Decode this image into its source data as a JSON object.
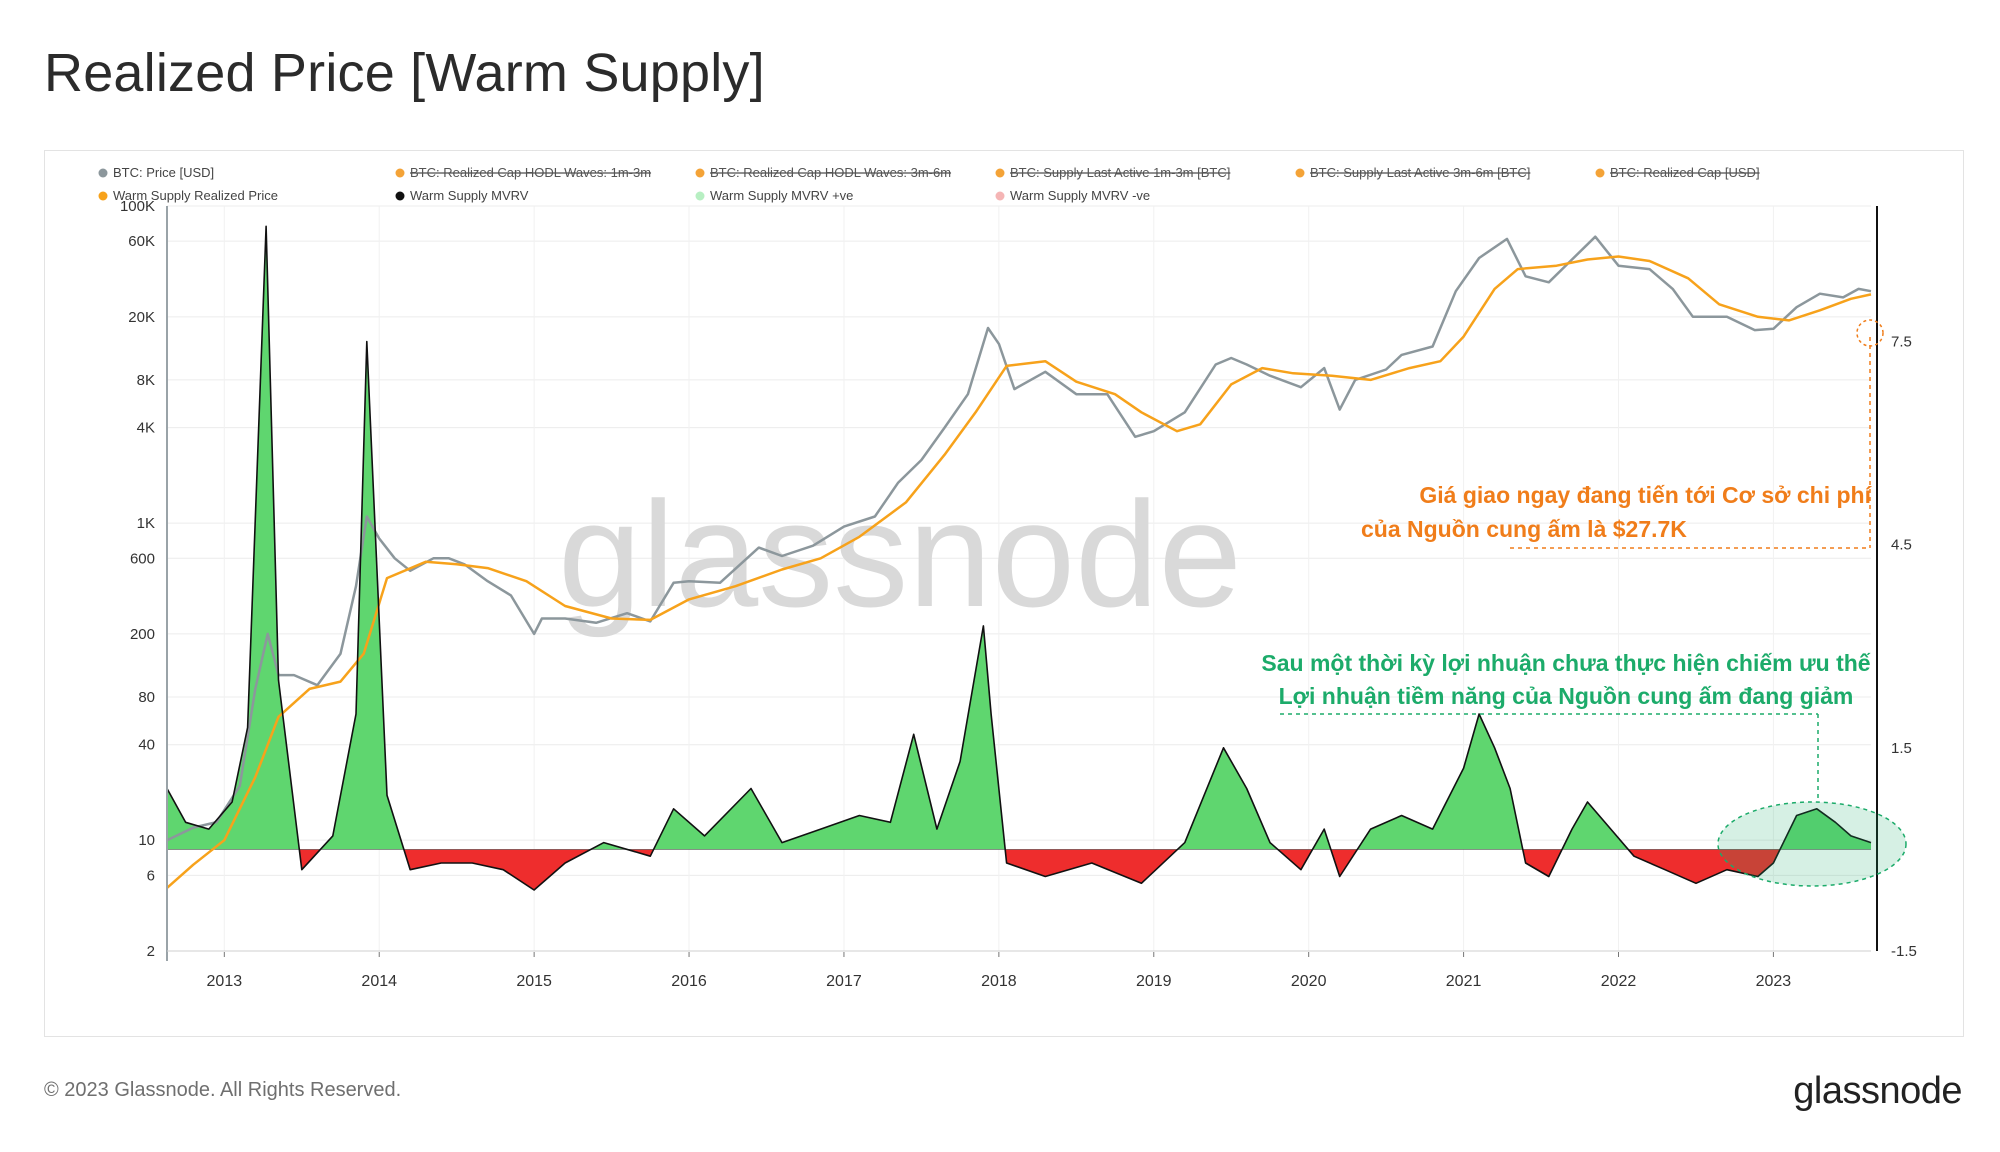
{
  "header": {
    "title": "Realized Price [Warm Supply]"
  },
  "footer": {
    "copyright": "© 2023 Glassnode. All Rights Reserved.",
    "logo": "glassnode"
  },
  "watermark": "glassnode",
  "legend": [
    {
      "label": "BTC: Price [USD]",
      "color": "#8c979c",
      "struck": false
    },
    {
      "label": "BTC: Realized Cap HODL Waves: 1m-3m",
      "color": "#f4a337",
      "struck": true
    },
    {
      "label": "BTC: Realized Cap HODL Waves: 3m-6m",
      "color": "#f4a337",
      "struck": true
    },
    {
      "label": "BTC: Supply Last Active 1m-3m [BTC]",
      "color": "#f4a337",
      "struck": true
    },
    {
      "label": "BTC: Supply Last Active 3m-6m [BTC]",
      "color": "#f4a337",
      "struck": true
    },
    {
      "label": "BTC: Realized Cap [USD]",
      "color": "#f4a337",
      "struck": true
    },
    {
      "label": "Warm Supply Realized Price",
      "color": "#f7a21b",
      "struck": false
    },
    {
      "label": "Warm Supply MVRV",
      "color": "#111111",
      "struck": false
    },
    {
      "label": "Warm Supply MVRV +ve",
      "color": "#b7efc2",
      "struck": false
    },
    {
      "label": "Warm Supply MVRV -ve",
      "color": "#f5b5b5",
      "struck": false
    }
  ],
  "annotations": {
    "orange_line1": "Giá giao ngay đang tiến tới Cơ sở chi phí",
    "orange_line2": "của Nguồn cung ấm là $27.7K",
    "green_line1": "Sau một thời kỳ lợi nhuận chưa thực hiện chiếm ưu thế",
    "green_line2": "Lợi nhuận tiềm năng của Nguồn cung ấm đang giảm"
  },
  "colors": {
    "price": "#8c979c",
    "realized_price": "#f7a21b",
    "mvrv_line": "#111111",
    "mvrv_positive": "#5fd66f",
    "mvrv_negative": "#ee2d2d",
    "annotation_orange": "#f07d1a",
    "annotation_green": "#1cab6a"
  },
  "chart_data": {
    "type": "line",
    "x_label": "",
    "x_ticks": [
      "2013",
      "2014",
      "2015",
      "2016",
      "2017",
      "2018",
      "2019",
      "2020",
      "2021",
      "2022",
      "2023"
    ],
    "x_range": [
      2012.63,
      2023.63
    ],
    "y_left": {
      "scale": "log",
      "range": [
        2,
        100000
      ],
      "ticks": [
        "2",
        "6",
        "10",
        "40",
        "80",
        "200",
        "600",
        "1K",
        "4K",
        "8K",
        "20K",
        "60K",
        "100K"
      ]
    },
    "y_right": {
      "scale": "linear",
      "range": [
        -1.5,
        9.5
      ],
      "ticks": [
        "-1.5",
        "1.5",
        "4.5",
        "7.5"
      ]
    },
    "grid": true,
    "legend_position": "top",
    "series": [
      {
        "name": "BTC: Price [USD]",
        "axis": "left",
        "points": [
          [
            2012.63,
            10
          ],
          [
            2012.8,
            12
          ],
          [
            2012.95,
            13
          ],
          [
            2013.1,
            22
          ],
          [
            2013.2,
            90
          ],
          [
            2013.28,
            200
          ],
          [
            2013.35,
            110
          ],
          [
            2013.45,
            110
          ],
          [
            2013.6,
            95
          ],
          [
            2013.75,
            150
          ],
          [
            2013.85,
            400
          ],
          [
            2013.92,
            1100
          ],
          [
            2014.0,
            800
          ],
          [
            2014.1,
            600
          ],
          [
            2014.2,
            500
          ],
          [
            2014.35,
            600
          ],
          [
            2014.45,
            600
          ],
          [
            2014.55,
            550
          ],
          [
            2014.7,
            430
          ],
          [
            2014.85,
            350
          ],
          [
            2015.0,
            200
          ],
          [
            2015.05,
            250
          ],
          [
            2015.2,
            250
          ],
          [
            2015.4,
            235
          ],
          [
            2015.6,
            270
          ],
          [
            2015.75,
            240
          ],
          [
            2015.9,
            420
          ],
          [
            2016.0,
            430
          ],
          [
            2016.2,
            420
          ],
          [
            2016.45,
            700
          ],
          [
            2016.6,
            620
          ],
          [
            2016.8,
            720
          ],
          [
            2017.0,
            950
          ],
          [
            2017.2,
            1100
          ],
          [
            2017.35,
            1800
          ],
          [
            2017.5,
            2500
          ],
          [
            2017.65,
            4000
          ],
          [
            2017.8,
            6500
          ],
          [
            2017.93,
            17000
          ],
          [
            2018.0,
            13500
          ],
          [
            2018.1,
            7000
          ],
          [
            2018.3,
            9000
          ],
          [
            2018.5,
            6500
          ],
          [
            2018.7,
            6500
          ],
          [
            2018.88,
            3500
          ],
          [
            2019.0,
            3800
          ],
          [
            2019.2,
            5000
          ],
          [
            2019.4,
            10000
          ],
          [
            2019.5,
            11000
          ],
          [
            2019.6,
            10000
          ],
          [
            2019.75,
            8500
          ],
          [
            2019.95,
            7200
          ],
          [
            2020.1,
            9500
          ],
          [
            2020.2,
            5200
          ],
          [
            2020.3,
            8000
          ],
          [
            2020.5,
            9300
          ],
          [
            2020.6,
            11500
          ],
          [
            2020.8,
            13000
          ],
          [
            2020.95,
            29000
          ],
          [
            2021.1,
            47000
          ],
          [
            2021.28,
            62000
          ],
          [
            2021.4,
            36000
          ],
          [
            2021.55,
            33000
          ],
          [
            2021.7,
            46000
          ],
          [
            2021.85,
            64000
          ],
          [
            2022.0,
            42000
          ],
          [
            2022.2,
            40000
          ],
          [
            2022.35,
            30000
          ],
          [
            2022.48,
            20000
          ],
          [
            2022.7,
            20000
          ],
          [
            2022.88,
            16500
          ],
          [
            2023.0,
            16800
          ],
          [
            2023.15,
            23000
          ],
          [
            2023.3,
            28000
          ],
          [
            2023.45,
            26500
          ],
          [
            2023.55,
            30000
          ],
          [
            2023.63,
            29000
          ]
        ]
      },
      {
        "name": "Warm Supply Realized Price",
        "axis": "left",
        "points": [
          [
            2012.63,
            5
          ],
          [
            2012.8,
            7
          ],
          [
            2013.0,
            10
          ],
          [
            2013.2,
            25
          ],
          [
            2013.35,
            60
          ],
          [
            2013.55,
            90
          ],
          [
            2013.75,
            100
          ],
          [
            2013.9,
            150
          ],
          [
            2014.05,
            450
          ],
          [
            2014.3,
            570
          ],
          [
            2014.5,
            550
          ],
          [
            2014.7,
            520
          ],
          [
            2014.95,
            430
          ],
          [
            2015.2,
            300
          ],
          [
            2015.5,
            250
          ],
          [
            2015.75,
            245
          ],
          [
            2016.0,
            330
          ],
          [
            2016.3,
            400
          ],
          [
            2016.6,
            510
          ],
          [
            2016.85,
            600
          ],
          [
            2017.1,
            820
          ],
          [
            2017.4,
            1350
          ],
          [
            2017.65,
            2700
          ],
          [
            2017.85,
            5000
          ],
          [
            2018.05,
            9800
          ],
          [
            2018.3,
            10500
          ],
          [
            2018.5,
            7800
          ],
          [
            2018.75,
            6500
          ],
          [
            2018.92,
            5000
          ],
          [
            2019.15,
            3800
          ],
          [
            2019.3,
            4200
          ],
          [
            2019.5,
            7500
          ],
          [
            2019.7,
            9500
          ],
          [
            2019.9,
            8800
          ],
          [
            2020.15,
            8500
          ],
          [
            2020.4,
            8000
          ],
          [
            2020.65,
            9500
          ],
          [
            2020.85,
            10500
          ],
          [
            2021.0,
            15000
          ],
          [
            2021.2,
            30000
          ],
          [
            2021.35,
            40000
          ],
          [
            2021.6,
            42000
          ],
          [
            2021.8,
            46000
          ],
          [
            2022.0,
            48000
          ],
          [
            2022.2,
            45000
          ],
          [
            2022.45,
            35000
          ],
          [
            2022.65,
            24000
          ],
          [
            2022.9,
            20000
          ],
          [
            2023.1,
            19000
          ],
          [
            2023.3,
            22000
          ],
          [
            2023.5,
            26000
          ],
          [
            2023.63,
            27700
          ]
        ]
      },
      {
        "name": "Warm Supply MVRV",
        "axis": "right",
        "points": [
          [
            2012.63,
            0.9
          ],
          [
            2012.75,
            0.4
          ],
          [
            2012.9,
            0.3
          ],
          [
            2013.05,
            0.7
          ],
          [
            2013.15,
            1.8
          ],
          [
            2013.27,
            9.2
          ],
          [
            2013.35,
            2.5
          ],
          [
            2013.5,
            -0.3
          ],
          [
            2013.7,
            0.2
          ],
          [
            2013.85,
            2.0
          ],
          [
            2013.92,
            7.5
          ],
          [
            2014.05,
            0.8
          ],
          [
            2014.2,
            -0.3
          ],
          [
            2014.4,
            -0.2
          ],
          [
            2014.6,
            -0.2
          ],
          [
            2014.8,
            -0.3
          ],
          [
            2015.0,
            -0.6
          ],
          [
            2015.2,
            -0.2
          ],
          [
            2015.45,
            0.1
          ],
          [
            2015.75,
            -0.1
          ],
          [
            2015.9,
            0.6
          ],
          [
            2016.1,
            0.2
          ],
          [
            2016.4,
            0.9
          ],
          [
            2016.6,
            0.1
          ],
          [
            2016.85,
            0.3
          ],
          [
            2017.1,
            0.5
          ],
          [
            2017.3,
            0.4
          ],
          [
            2017.45,
            1.7
          ],
          [
            2017.6,
            0.3
          ],
          [
            2017.75,
            1.3
          ],
          [
            2017.9,
            3.3
          ],
          [
            2017.95,
            2.0
          ],
          [
            2018.05,
            -0.2
          ],
          [
            2018.3,
            -0.4
          ],
          [
            2018.6,
            -0.2
          ],
          [
            2018.92,
            -0.5
          ],
          [
            2019.2,
            0.1
          ],
          [
            2019.45,
            1.5
          ],
          [
            2019.6,
            0.9
          ],
          [
            2019.75,
            0.1
          ],
          [
            2019.95,
            -0.3
          ],
          [
            2020.1,
            0.3
          ],
          [
            2020.2,
            -0.4
          ],
          [
            2020.4,
            0.3
          ],
          [
            2020.6,
            0.5
          ],
          [
            2020.8,
            0.3
          ],
          [
            2021.0,
            1.2
          ],
          [
            2021.1,
            2.0
          ],
          [
            2021.2,
            1.5
          ],
          [
            2021.3,
            0.9
          ],
          [
            2021.4,
            -0.2
          ],
          [
            2021.55,
            -0.4
          ],
          [
            2021.7,
            0.3
          ],
          [
            2021.8,
            0.7
          ],
          [
            2021.95,
            0.3
          ],
          [
            2022.1,
            -0.1
          ],
          [
            2022.3,
            -0.3
          ],
          [
            2022.5,
            -0.5
          ],
          [
            2022.7,
            -0.3
          ],
          [
            2022.9,
            -0.4
          ],
          [
            2023.0,
            -0.2
          ],
          [
            2023.15,
            0.5
          ],
          [
            2023.28,
            0.6
          ],
          [
            2023.4,
            0.4
          ],
          [
            2023.5,
            0.2
          ],
          [
            2023.63,
            0.1
          ]
        ]
      }
    ]
  }
}
